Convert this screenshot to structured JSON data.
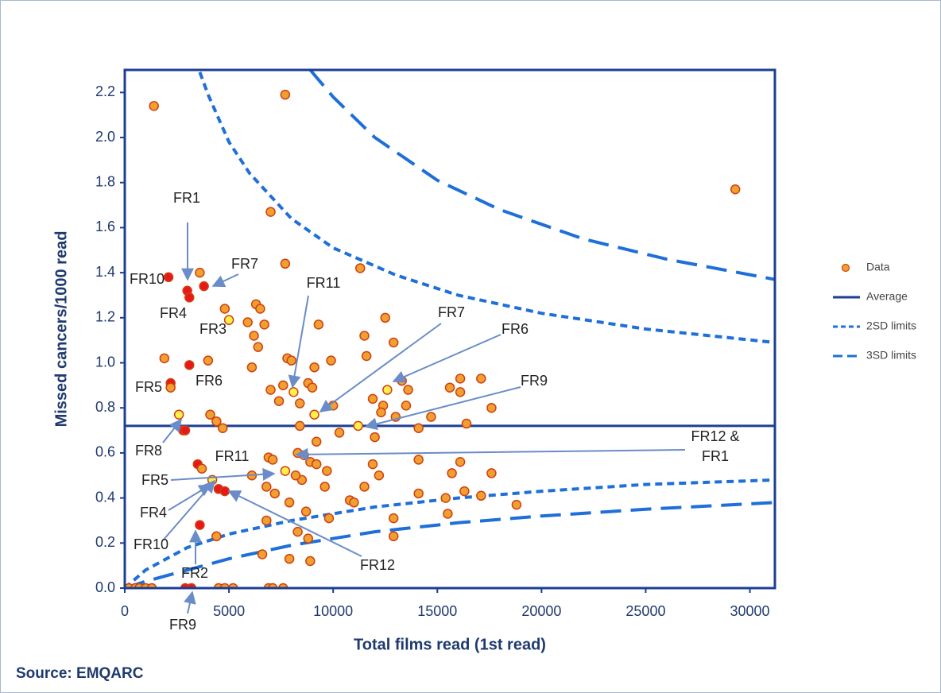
{
  "chart_data": {
    "type": "scatter",
    "y_label": "Missed cancers/1000 read",
    "x_label": "Total films read (1st read)",
    "source": "Source: EMQARC",
    "xlim": [
      0,
      31200
    ],
    "ylim": [
      0,
      2.3
    ],
    "xticks": [
      0,
      5000,
      10000,
      15000,
      20000,
      25000,
      30000
    ],
    "yticks": [
      {
        "value": 0,
        "label": "0.0"
      },
      0.2,
      0.4,
      0.6,
      0.8,
      {
        "value": 1,
        "label": "1.0"
      },
      1.2,
      1.4,
      1.6,
      1.8,
      {
        "value": 2,
        "label": "2.0"
      },
      2.2
    ],
    "legend": "right",
    "series": [
      {
        "name": "Data",
        "style": "markers",
        "color": "#f0a030",
        "x": [
          200,
          500,
          700,
          1000,
          1300,
          2900,
          3200,
          4500,
          4800,
          5200,
          6900,
          7100,
          7600,
          1400,
          7700,
          29300,
          7000,
          7700,
          11300,
          2100,
          3600,
          3000,
          3800,
          3100,
          4800,
          5000,
          6300,
          6500,
          5900,
          6200,
          6700,
          6400,
          1900,
          3100,
          4000,
          2200,
          2200,
          6100,
          7000,
          7800,
          8000,
          7600,
          8400,
          7400,
          8100,
          8800,
          9100,
          9000,
          9300,
          9900,
          10000,
          9100,
          11500,
          11600,
          11900,
          12500,
          12900,
          12400,
          12600,
          13300,
          13600,
          13500,
          12300,
          13000,
          14700,
          15600,
          16100,
          16100,
          17100,
          17600,
          16400,
          14100,
          11200,
          8400,
          4100,
          4400,
          4700,
          2600,
          2800,
          2900,
          9200,
          10300,
          12000,
          8300,
          8600,
          8900,
          9200,
          11900,
          14100,
          12200,
          11500,
          10800,
          11000,
          9700,
          9600,
          8500,
          8200,
          7700,
          7200,
          6900,
          7100,
          6800,
          6100,
          4200,
          3500,
          3700,
          4500,
          4800,
          7900,
          8700,
          9800,
          12900,
          15400,
          15500,
          15700,
          16100,
          16300,
          17100,
          17600,
          18800,
          14100,
          12900,
          8800,
          8300,
          6800,
          6600,
          4400,
          3600,
          7900,
          8900
        ],
        "values": [
          0,
          0,
          0,
          0,
          0,
          0,
          0,
          0,
          0,
          0,
          0,
          0,
          0,
          2.14,
          2.19,
          1.77,
          1.67,
          1.44,
          1.42,
          1.38,
          1.4,
          1.32,
          1.34,
          1.29,
          1.24,
          1.19,
          1.26,
          1.24,
          1.18,
          1.12,
          1.17,
          1.07,
          1.02,
          0.99,
          1.01,
          0.91,
          0.89,
          0.98,
          0.88,
          1.02,
          1.01,
          0.9,
          0.82,
          0.83,
          0.87,
          0.91,
          0.98,
          0.89,
          1.17,
          1.01,
          0.81,
          0.77,
          1.12,
          1.03,
          0.84,
          1.2,
          1.09,
          0.81,
          0.88,
          0.92,
          0.88,
          0.81,
          0.78,
          0.76,
          0.76,
          0.89,
          0.93,
          0.87,
          0.93,
          0.8,
          0.73,
          0.71,
          0.72,
          0.72,
          0.77,
          0.74,
          0.71,
          0.77,
          0.7,
          0.7,
          0.65,
          0.69,
          0.67,
          0.6,
          0.59,
          0.56,
          0.55,
          0.55,
          0.57,
          0.5,
          0.45,
          0.39,
          0.38,
          0.52,
          0.45,
          0.48,
          0.5,
          0.52,
          0.42,
          0.58,
          0.57,
          0.45,
          0.5,
          0.48,
          0.55,
          0.53,
          0.44,
          0.43,
          0.38,
          0.34,
          0.31,
          0.31,
          0.4,
          0.33,
          0.51,
          0.56,
          0.43,
          0.41,
          0.51,
          0.37,
          0.42,
          0.23,
          0.22,
          0.25,
          0.3,
          0.15,
          0.23,
          0.28,
          0.13,
          0.12
        ],
        "point_colors": [
          "#f0a030",
          "#f0a030",
          "#f0a030",
          "#f0a030",
          "#f0a030",
          "#e81818",
          "#e81818",
          "#f0a030",
          "#f0a030",
          "#f0a030",
          "#f0a030",
          "#f0a030",
          "#f0a030",
          "#f0a030",
          "#f0a030",
          "#f0a030",
          "#f0a030",
          "#f0a030",
          "#f0a030",
          "#e81818",
          "#f0a030",
          "#e81818",
          "#e81818",
          "#e81818",
          "#f0a030",
          "#fff04a",
          "#f0a030",
          "#f0a030",
          "#f0a030",
          "#f0a030",
          "#f0a030",
          "#f0a030",
          "#f0a030",
          "#e81818",
          "#f0a030",
          "#e81818",
          "#f0a030",
          "#f0a030",
          "#f0a030",
          "#f0a030",
          "#f0a030",
          "#f0a030",
          "#f0a030",
          "#f0a030",
          "#fff04a",
          "#f0a030",
          "#f0a030",
          "#f0a030",
          "#f0a030",
          "#f0a030",
          "#f0a030",
          "#fff04a",
          "#f0a030",
          "#f0a030",
          "#f0a030",
          "#f0a030",
          "#f0a030",
          "#f0a030",
          "#fff04a",
          "#f0a030",
          "#f0a030",
          "#f0a030",
          "#f0a030",
          "#f0a030",
          "#f0a030",
          "#f0a030",
          "#f0a030",
          "#f0a030",
          "#f0a030",
          "#f0a030",
          "#f0a030",
          "#f0a030",
          "#fff04a",
          "#f0a030",
          "#f0a030",
          "#f0a030",
          "#f0a030",
          "#fff04a",
          "#e81818",
          "#e81818",
          "#f0a030",
          "#f0a030",
          "#f0a030",
          "#f0a030",
          "#fff04a",
          "#f0a030",
          "#f0a030",
          "#f0a030",
          "#f0a030",
          "#f0a030",
          "#f0a030",
          "#f0a030",
          "#f0a030",
          "#f0a030",
          "#f0a030",
          "#f0a030",
          "#f0a030",
          "#fff04a",
          "#f0a030",
          "#f0a030",
          "#f0a030",
          "#f0a030",
          "#f0a030",
          "#fff04a",
          "#e81818",
          "#f0a030",
          "#e81818",
          "#e81818",
          "#f0a030",
          "#f0a030",
          "#f0a030",
          "#f0a030",
          "#f0a030",
          "#f0a030",
          "#f0a030",
          "#f0a030",
          "#f0a030",
          "#f0a030",
          "#f0a030",
          "#f0a030",
          "#f0a030",
          "#f0a030",
          "#f0a030",
          "#f0a030",
          "#f0a030",
          "#f0a030",
          "#f0a030",
          "#e81818",
          "#f0a030",
          "#f0a030"
        ]
      },
      {
        "name": "Average",
        "style": "solid",
        "color": "#1c3f94",
        "x": [
          0,
          31200
        ],
        "values": [
          0.72,
          0.72
        ]
      },
      {
        "name": "2SD limits",
        "style": "dotted",
        "color": "#1e6fd9",
        "x": [
          3600,
          4000,
          5000,
          6000,
          8000,
          10000,
          13000,
          16000,
          20000,
          25000,
          31200,
          null,
          0,
          1000,
          2000,
          3000,
          5000,
          8000,
          12000,
          16000,
          20000,
          25000,
          31200
        ],
        "values": [
          2.29,
          2.19,
          1.98,
          1.84,
          1.64,
          1.51,
          1.39,
          1.3,
          1.22,
          1.15,
          1.09,
          null,
          0,
          0.08,
          0.13,
          0.18,
          0.24,
          0.3,
          0.36,
          0.4,
          0.43,
          0.46,
          0.48
        ]
      },
      {
        "name": "3SD limits",
        "style": "dashed",
        "color": "#1e6fd9",
        "x": [
          8900,
          10000,
          12000,
          15000,
          18000,
          22000,
          26000,
          31200,
          null,
          0,
          1000,
          3000,
          5000,
          8000,
          12000,
          16000,
          20000,
          25000,
          31200
        ],
        "values": [
          2.3,
          2.18,
          2.0,
          1.81,
          1.68,
          1.55,
          1.46,
          1.37,
          null,
          0,
          0.03,
          0.08,
          0.13,
          0.19,
          0.25,
          0.29,
          0.32,
          0.35,
          0.38
        ]
      }
    ],
    "annotations": [
      "FR1",
      "FR10",
      "FR7",
      "FR4",
      "FR3",
      "FR11",
      "FR6",
      "FR5",
      "FR7",
      "FR6",
      "FR9",
      "FR8",
      "FR11",
      "FR12 &",
      "FR1",
      "FR5",
      "FR4",
      "FR10",
      "FR2",
      "FR12",
      "FR9"
    ]
  }
}
